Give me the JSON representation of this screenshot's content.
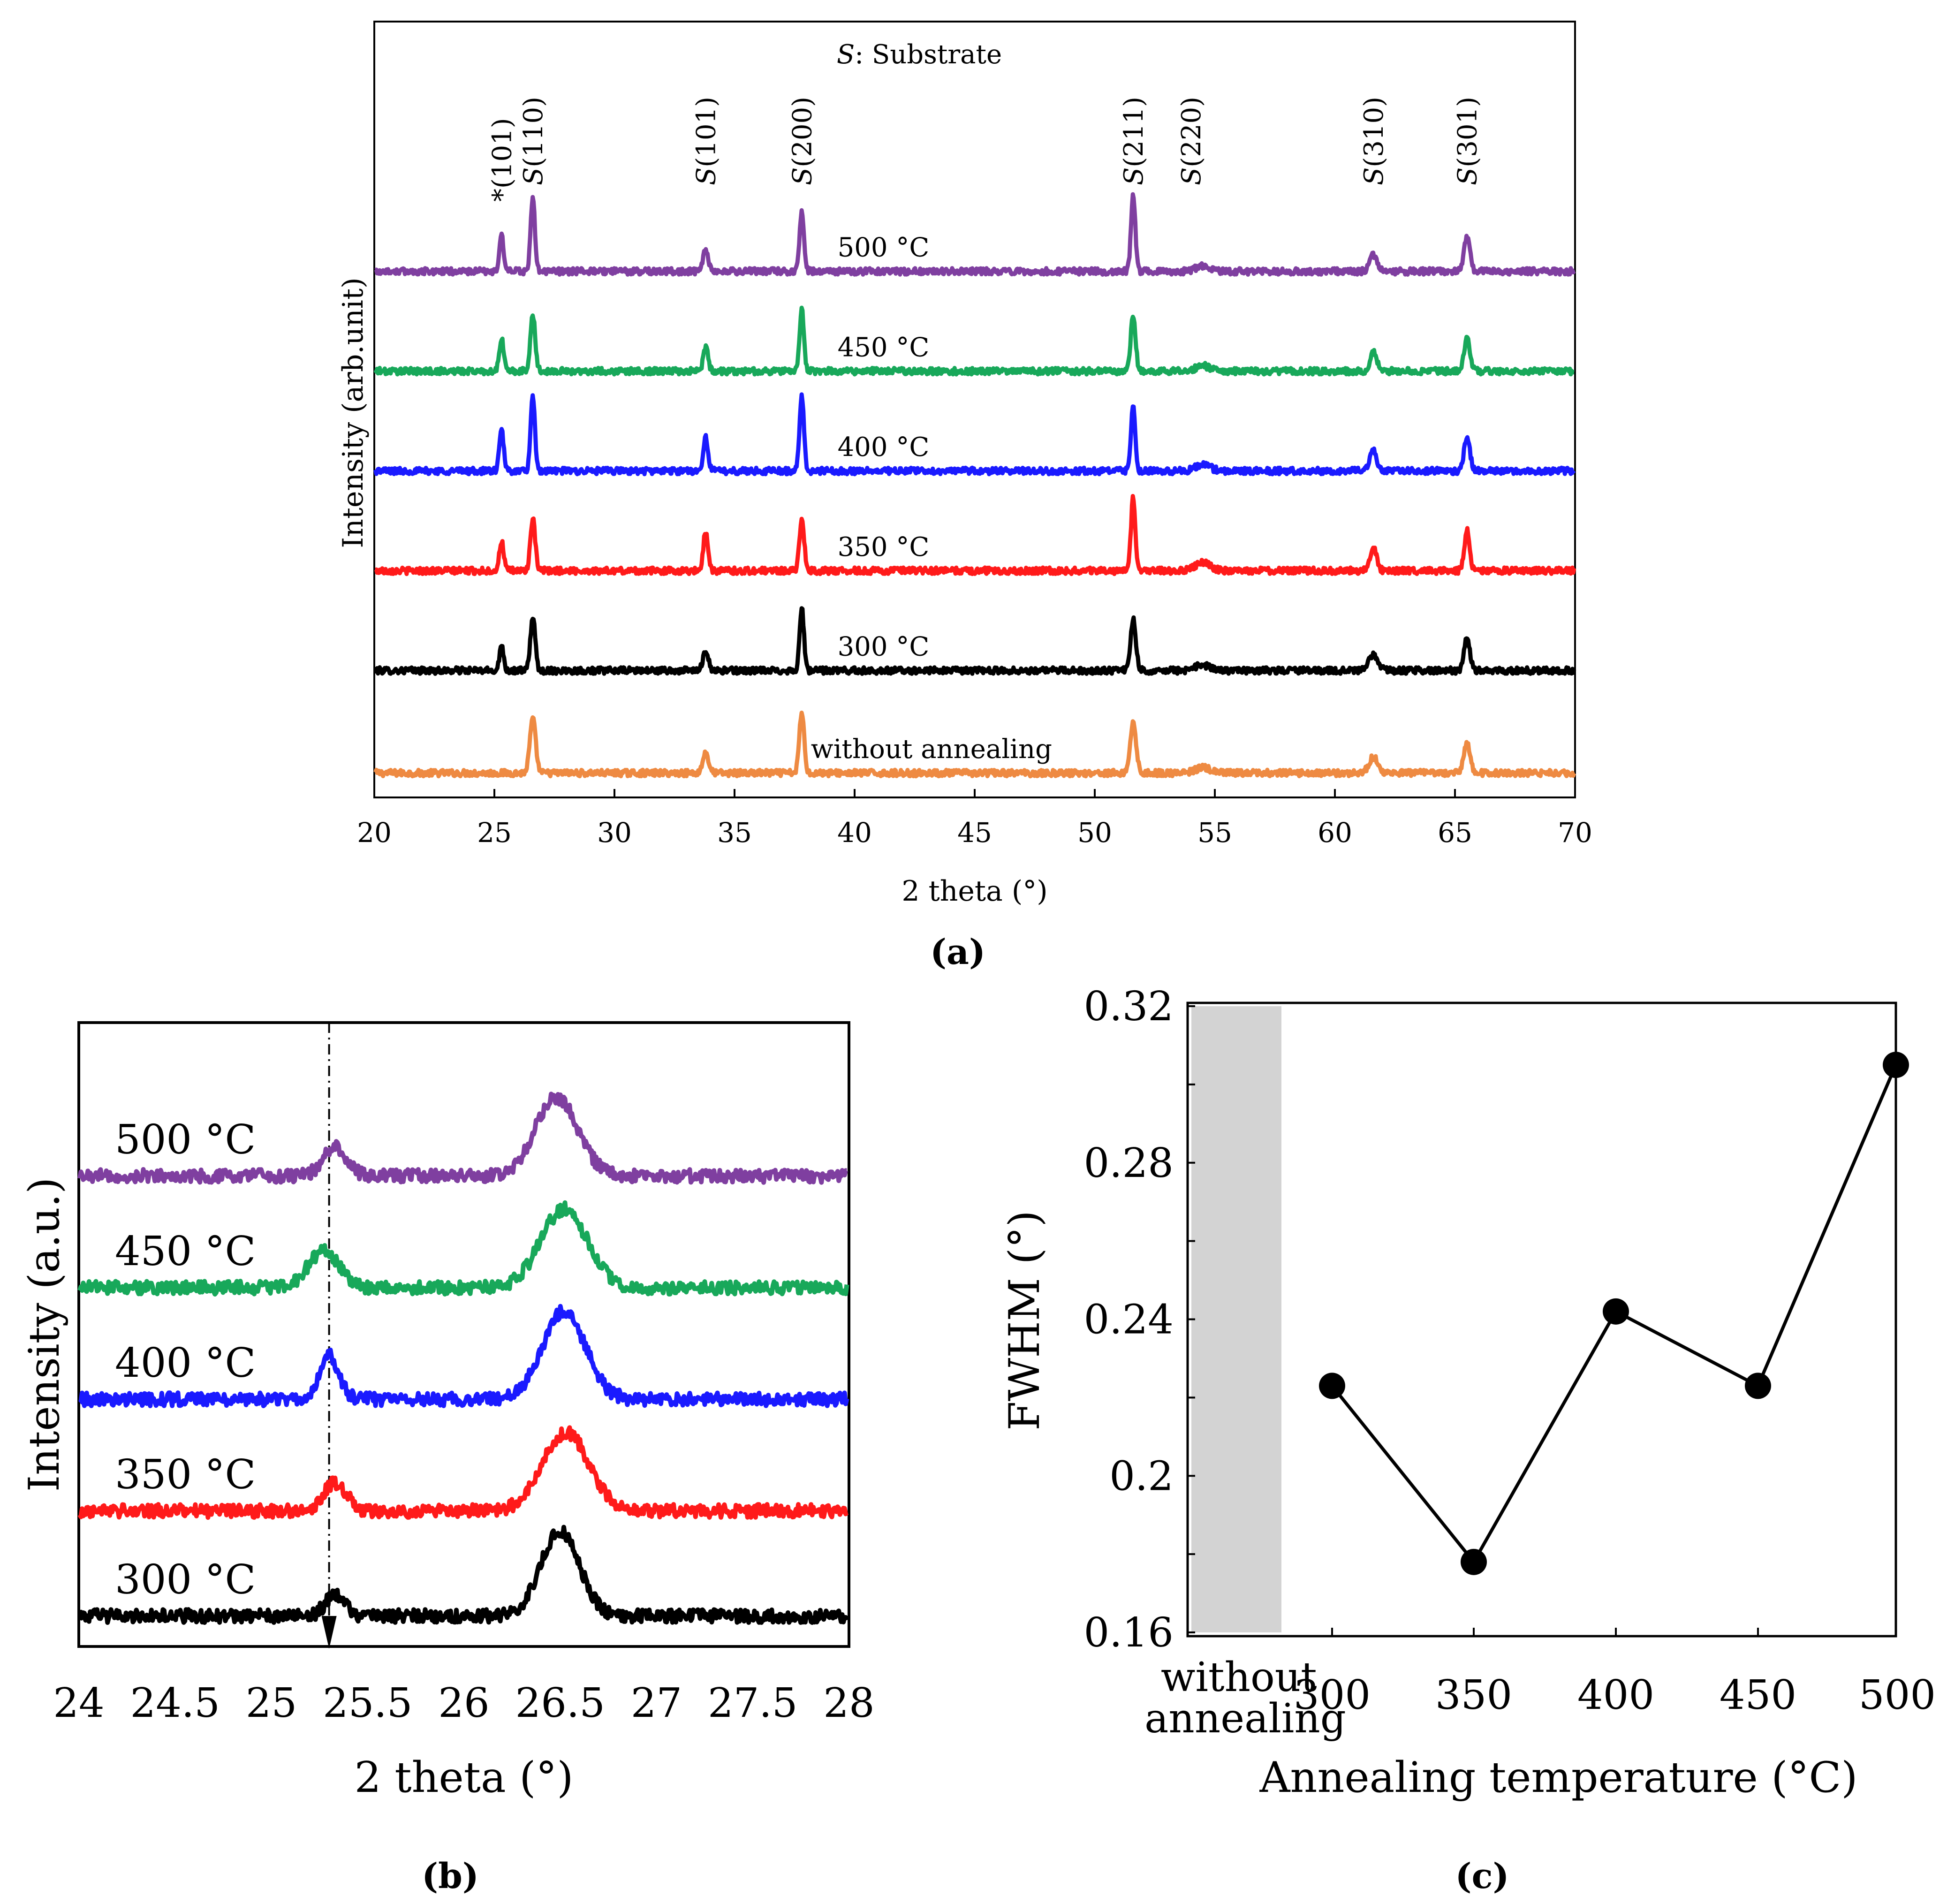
{
  "chart_data": [
    {
      "panel": "a",
      "panel_label": "(a)",
      "type": "line",
      "title": "S: Substrate",
      "title_italic": "S",
      "title_rest": ": Substrate",
      "xlabel": "2 theta (°)",
      "ylabel": "Intensity (arb.unit)",
      "xlim": [
        20,
        70
      ],
      "xticks": [
        "20",
        "25",
        "30",
        "35",
        "40",
        "45",
        "50",
        "55",
        "60",
        "65",
        "70"
      ],
      "peak_labels": [
        {
          "text": "*(101)",
          "x": 25.3
        },
        {
          "text": "S(110)",
          "x": 26.6
        },
        {
          "text": "S(101)",
          "x": 33.8
        },
        {
          "text": "S(200)",
          "x": 37.8
        },
        {
          "text": "S(211)",
          "x": 51.6
        },
        {
          "text": "S(220)",
          "x": 54.0
        },
        {
          "text": "S(310)",
          "x": 61.6
        },
        {
          "text": "S(301)",
          "x": 65.5
        }
      ],
      "series": [
        {
          "name": "without annealing",
          "color": "#ee8a42",
          "baseline": 0.0,
          "peaks": [
            [
              26.6,
              1.0,
              0.12
            ],
            [
              33.8,
              0.38,
              0.12
            ],
            [
              37.8,
              1.12,
              0.1
            ],
            [
              51.6,
              0.95,
              0.12
            ],
            [
              54.5,
              0.1,
              0.3
            ],
            [
              61.6,
              0.3,
              0.18
            ],
            [
              65.5,
              0.55,
              0.13
            ]
          ]
        },
        {
          "name": "300 °C",
          "color": "#000000",
          "baseline": 1.9,
          "peaks": [
            [
              25.3,
              0.45,
              0.09
            ],
            [
              26.6,
              1.0,
              0.1
            ],
            [
              33.8,
              0.38,
              0.11
            ],
            [
              37.8,
              1.15,
              0.09
            ],
            [
              51.6,
              0.95,
              0.11
            ],
            [
              54.5,
              0.1,
              0.3
            ],
            [
              61.6,
              0.3,
              0.18
            ],
            [
              65.5,
              0.6,
              0.12
            ]
          ]
        },
        {
          "name": "350 °C",
          "color": "#ff1a1a",
          "baseline": 3.75,
          "peaks": [
            [
              25.3,
              0.55,
              0.09
            ],
            [
              26.6,
              0.95,
              0.1
            ],
            [
              33.8,
              0.72,
              0.1
            ],
            [
              37.8,
              0.95,
              0.1
            ],
            [
              51.6,
              1.35,
              0.09
            ],
            [
              54.5,
              0.15,
              0.3
            ],
            [
              61.6,
              0.42,
              0.14
            ],
            [
              65.5,
              0.75,
              0.11
            ]
          ]
        },
        {
          "name": "400 °C",
          "color": "#1a1aff",
          "baseline": 5.6,
          "peaks": [
            [
              25.3,
              0.75,
              0.09
            ],
            [
              26.6,
              1.35,
              0.09
            ],
            [
              33.8,
              0.62,
              0.1
            ],
            [
              37.8,
              1.4,
              0.09
            ],
            [
              51.6,
              1.2,
              0.09
            ],
            [
              54.5,
              0.12,
              0.3
            ],
            [
              61.6,
              0.4,
              0.14
            ],
            [
              65.5,
              0.65,
              0.12
            ]
          ]
        },
        {
          "name": "450 °C",
          "color": "#18a85a",
          "baseline": 7.45,
          "peaks": [
            [
              25.3,
              0.6,
              0.09
            ],
            [
              26.6,
              1.05,
              0.1
            ],
            [
              33.8,
              0.45,
              0.1
            ],
            [
              37.8,
              1.15,
              0.09
            ],
            [
              51.6,
              1.05,
              0.1
            ],
            [
              54.5,
              0.1,
              0.3
            ],
            [
              61.6,
              0.35,
              0.14
            ],
            [
              65.5,
              0.6,
              0.12
            ]
          ]
        },
        {
          "name": "500 °C",
          "color": "#7f3fa0",
          "baseline": 9.3,
          "peaks": [
            [
              25.3,
              0.65,
              0.09
            ],
            [
              26.6,
              1.35,
              0.09
            ],
            [
              33.8,
              0.4,
              0.1
            ],
            [
              37.8,
              1.1,
              0.09
            ],
            [
              51.6,
              1.4,
              0.09
            ],
            [
              54.5,
              0.1,
              0.3
            ],
            [
              61.6,
              0.3,
              0.14
            ],
            [
              65.5,
              0.65,
              0.12
            ]
          ]
        }
      ],
      "series_labels": [
        {
          "text": "without annealing",
          "x": 43.2
        },
        {
          "text": "300 °C",
          "x": 41.2
        },
        {
          "text": "350 °C",
          "x": 41.2
        },
        {
          "text": "400 °C",
          "x": 41.2
        },
        {
          "text": "450 °C",
          "x": 41.2
        },
        {
          "text": "500 °C",
          "x": 41.2
        }
      ]
    },
    {
      "panel": "b",
      "panel_label": "(b)",
      "type": "line",
      "xlabel": "2 theta (°)",
      "ylabel": "Intensity (a.u.)",
      "xlim": [
        24,
        28
      ],
      "xticks": [
        "24",
        "24.5",
        "25",
        "25.5",
        "26",
        "26.5",
        "27",
        "27.5",
        "28"
      ],
      "reference_line_x": 25.3,
      "series": [
        {
          "name": "300 °C",
          "color": "#000000",
          "baseline": 0.0,
          "peaks": [
            [
              25.33,
              0.32,
              0.05
            ],
            [
              26.5,
              1.3,
              0.1
            ]
          ]
        },
        {
          "name": "350 °C",
          "color": "#ff1a1a",
          "baseline": 1.6,
          "peaks": [
            [
              25.33,
              0.42,
              0.06
            ],
            [
              26.53,
              1.2,
              0.12
            ]
          ]
        },
        {
          "name": "400 °C",
          "color": "#1a1aff",
          "baseline": 3.3,
          "peaks": [
            [
              25.3,
              0.68,
              0.05
            ],
            [
              26.52,
              1.35,
              0.11
            ]
          ]
        },
        {
          "name": "450 °C",
          "color": "#18a85a",
          "baseline": 5.0,
          "peaks": [
            [
              25.27,
              0.55,
              0.08
            ],
            [
              26.52,
              1.2,
              0.12
            ]
          ]
        },
        {
          "name": "500 °C",
          "color": "#7f3fa0",
          "baseline": 6.7,
          "peaks": [
            [
              25.33,
              0.45,
              0.06
            ],
            [
              26.48,
              1.2,
              0.11
            ]
          ]
        }
      ],
      "series_labels": [
        "300 °C",
        "350 °C",
        "400 °C",
        "450 °C",
        "500 °C"
      ]
    },
    {
      "panel": "c",
      "panel_label": "(c)",
      "type": "line",
      "xlabel": "Annealing temperature (°C)",
      "ylabel": "FWHM (°)",
      "ylim": [
        0.16,
        0.32
      ],
      "yticks": [
        "0.16",
        "0.2",
        "0.24",
        "0.28",
        "0.32"
      ],
      "categories": [
        "300",
        "350",
        "400",
        "450",
        "500"
      ],
      "values": [
        0.223,
        0.178,
        0.242,
        0.223,
        0.305
      ],
      "shaded_category": [
        "without",
        "annealing"
      ]
    }
  ]
}
